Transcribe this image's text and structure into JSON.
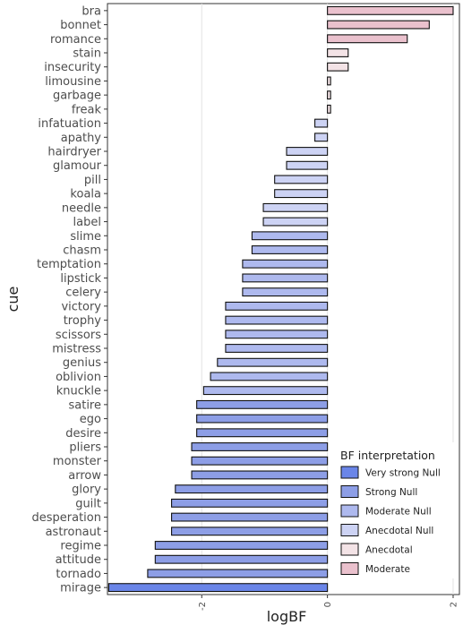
{
  "chart_data": {
    "type": "bar",
    "orientation": "horizontal",
    "xlabel": "logBF",
    "ylabel": "cue",
    "xlim": [
      -3.5,
      2.1
    ],
    "x_ticks": [
      -2,
      0,
      2
    ],
    "grid": true,
    "legend_title": "BF interpretation",
    "legend_position": "bottom-right",
    "legend": [
      {
        "label": "Very strong Null",
        "color": "#6a85e8"
      },
      {
        "label": "Strong Null",
        "color": "#8d9ee6"
      },
      {
        "label": "Moderate Null",
        "color": "#aeb9ee"
      },
      {
        "label": "Anecdotal Null",
        "color": "#cdd3f4"
      },
      {
        "label": "Anecdotal",
        "color": "#f3e3e6"
      },
      {
        "label": "Moderate",
        "color": "#eac1cd"
      }
    ],
    "bars": [
      {
        "cue": "bra",
        "value": 2.0,
        "category": "Moderate"
      },
      {
        "cue": "bonnet",
        "value": 1.62,
        "category": "Moderate"
      },
      {
        "cue": "romance",
        "value": 1.27,
        "category": "Moderate"
      },
      {
        "cue": "stain",
        "value": 0.33,
        "category": "Anecdotal"
      },
      {
        "cue": "insecurity",
        "value": 0.33,
        "category": "Anecdotal"
      },
      {
        "cue": "limousine",
        "value": 0.05,
        "category": "Anecdotal"
      },
      {
        "cue": "garbage",
        "value": 0.05,
        "category": "Anecdotal"
      },
      {
        "cue": "freak",
        "value": 0.05,
        "category": "Anecdotal"
      },
      {
        "cue": "infatuation",
        "value": -0.2,
        "category": "Anecdotal Null"
      },
      {
        "cue": "apathy",
        "value": -0.2,
        "category": "Anecdotal Null"
      },
      {
        "cue": "hairdryer",
        "value": -0.65,
        "category": "Anecdotal Null"
      },
      {
        "cue": "glamour",
        "value": -0.65,
        "category": "Anecdotal Null"
      },
      {
        "cue": "pill",
        "value": -0.84,
        "category": "Anecdotal Null"
      },
      {
        "cue": "koala",
        "value": -0.84,
        "category": "Anecdotal Null"
      },
      {
        "cue": "needle",
        "value": -1.02,
        "category": "Anecdotal Null"
      },
      {
        "cue": "label",
        "value": -1.02,
        "category": "Anecdotal Null"
      },
      {
        "cue": "slime",
        "value": -1.2,
        "category": "Moderate Null"
      },
      {
        "cue": "chasm",
        "value": -1.2,
        "category": "Moderate Null"
      },
      {
        "cue": "temptation",
        "value": -1.35,
        "category": "Moderate Null"
      },
      {
        "cue": "lipstick",
        "value": -1.35,
        "category": "Moderate Null"
      },
      {
        "cue": "celery",
        "value": -1.35,
        "category": "Moderate Null"
      },
      {
        "cue": "victory",
        "value": -1.62,
        "category": "Moderate Null"
      },
      {
        "cue": "trophy",
        "value": -1.62,
        "category": "Moderate Null"
      },
      {
        "cue": "scissors",
        "value": -1.62,
        "category": "Moderate Null"
      },
      {
        "cue": "mistress",
        "value": -1.62,
        "category": "Moderate Null"
      },
      {
        "cue": "genius",
        "value": -1.75,
        "category": "Moderate Null"
      },
      {
        "cue": "oblivion",
        "value": -1.86,
        "category": "Moderate Null"
      },
      {
        "cue": "knuckle",
        "value": -1.97,
        "category": "Moderate Null"
      },
      {
        "cue": "satire",
        "value": -2.08,
        "category": "Strong Null"
      },
      {
        "cue": "ego",
        "value": -2.08,
        "category": "Strong Null"
      },
      {
        "cue": "desire",
        "value": -2.08,
        "category": "Strong Null"
      },
      {
        "cue": "pliers",
        "value": -2.16,
        "category": "Strong Null"
      },
      {
        "cue": "monster",
        "value": -2.16,
        "category": "Strong Null"
      },
      {
        "cue": "arrow",
        "value": -2.16,
        "category": "Strong Null"
      },
      {
        "cue": "glory",
        "value": -2.42,
        "category": "Strong Null"
      },
      {
        "cue": "guilt",
        "value": -2.48,
        "category": "Strong Null"
      },
      {
        "cue": "desperation",
        "value": -2.48,
        "category": "Strong Null"
      },
      {
        "cue": "astronaut",
        "value": -2.48,
        "category": "Strong Null"
      },
      {
        "cue": "regime",
        "value": -2.74,
        "category": "Strong Null"
      },
      {
        "cue": "attitude",
        "value": -2.74,
        "category": "Strong Null"
      },
      {
        "cue": "tornado",
        "value": -2.86,
        "category": "Strong Null"
      },
      {
        "cue": "mirage",
        "value": -3.48,
        "category": "Very strong Null"
      }
    ]
  }
}
